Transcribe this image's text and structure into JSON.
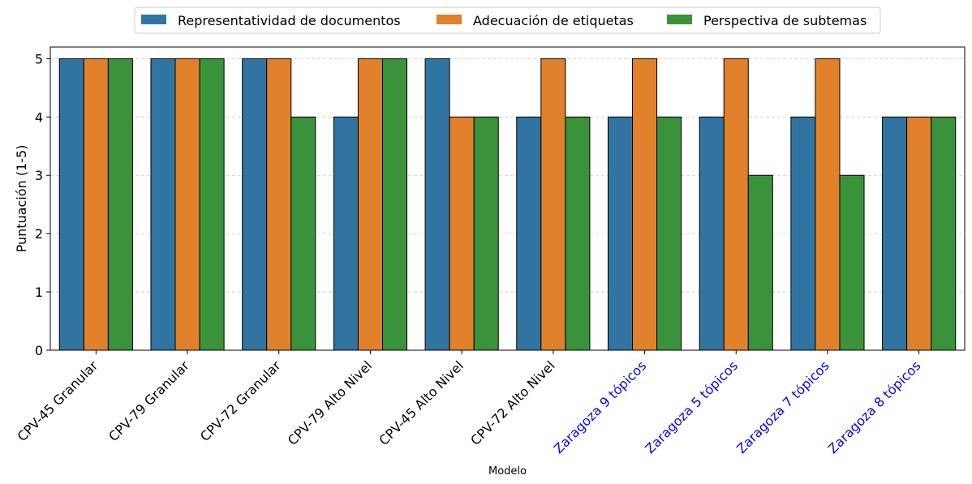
{
  "chart_data": {
    "type": "bar",
    "title": "",
    "xlabel": "Modelo",
    "ylabel": "Puntuación (1-5)",
    "ylim": [
      0,
      5.2
    ],
    "yticks": [
      0,
      1,
      2,
      3,
      4,
      5
    ],
    "grid": "y-dashed",
    "legend_position": "top-center",
    "categories": [
      "CPV-45 Granular",
      "CPV-79 Granular",
      "CPV-72 Granular",
      "CPV-79 Alto Nivel",
      "CPV-45 Alto Nivel",
      "CPV-72 Alto Nivel",
      "Zaragoza 9 tópicos",
      "Zaragoza 5 tópicos",
      "Zaragoza 7 tópicos",
      "Zaragoza 8 tópicos"
    ],
    "category_label_colors": [
      "#000000",
      "#000000",
      "#000000",
      "#000000",
      "#000000",
      "#000000",
      "#0000ff",
      "#0000ff",
      "#0000ff",
      "#0000ff"
    ],
    "series": [
      {
        "name": "Representatividad de documentos",
        "color": "#3274a1",
        "values": [
          5,
          5,
          5,
          4,
          5,
          4,
          4,
          4,
          4,
          4
        ]
      },
      {
        "name": "Adecuación de etiquetas",
        "color": "#e1812c",
        "values": [
          5,
          5,
          5,
          5,
          4,
          5,
          5,
          5,
          5,
          4
        ]
      },
      {
        "name": "Perspectiva de subtemas",
        "color": "#3a923a",
        "values": [
          5,
          5,
          4,
          5,
          4,
          4,
          4,
          3,
          3,
          4
        ]
      }
    ]
  }
}
